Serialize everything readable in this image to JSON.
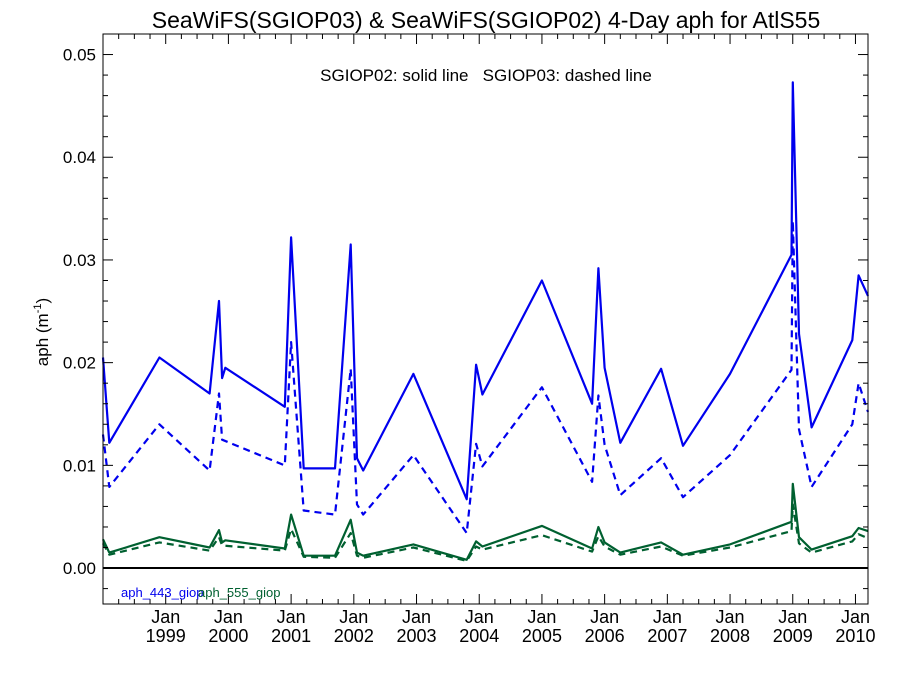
{
  "chart_data": {
    "type": "line",
    "title": "SeaWiFS(SGIOP03) & SeaWiFS(SGIOP02) 4-Day aph for AtlS55",
    "annotation": "SGIOP02: solid line   SGIOP03: dashed line",
    "ylabel": {
      "base": "aph (m",
      "exp": "-1",
      "close": ")"
    },
    "xlabel": "",
    "xlim": [
      1998.0,
      2010.2
    ],
    "ylim": [
      -0.0035,
      0.052
    ],
    "y_ticks": [
      0.0,
      0.01,
      0.02,
      0.03,
      0.04,
      0.05
    ],
    "y_tick_labels": [
      "0.00",
      "0.01",
      "0.02",
      "0.03",
      "0.04",
      "0.05"
    ],
    "x_ticks": [
      {
        "x": 1999.0,
        "month": "Jan",
        "year": "1999"
      },
      {
        "x": 2000.0,
        "month": "Jan",
        "year": "2000"
      },
      {
        "x": 2001.0,
        "month": "Jan",
        "year": "2001"
      },
      {
        "x": 2002.0,
        "month": "Jan",
        "year": "2002"
      },
      {
        "x": 2003.0,
        "month": "Jan",
        "year": "2003"
      },
      {
        "x": 2004.0,
        "month": "Jan",
        "year": "2004"
      },
      {
        "x": 2005.0,
        "month": "Jan",
        "year": "2005"
      },
      {
        "x": 2006.0,
        "month": "Jan",
        "year": "2006"
      },
      {
        "x": 2007.0,
        "month": "Jan",
        "year": "2007"
      },
      {
        "x": 2008.0,
        "month": "Jan",
        "year": "2008"
      },
      {
        "x": 2009.0,
        "month": "Jan",
        "year": "2009"
      },
      {
        "x": 2010.0,
        "month": "Jan",
        "year": "2010"
      }
    ],
    "zero_line": true,
    "grid": false,
    "legend": [
      {
        "label": "aph_443_giop",
        "color": "#0000ee"
      },
      {
        "label": "aph_555_giop",
        "color": "#006030"
      }
    ],
    "legend_position": "bottom-left",
    "series": [
      {
        "name": "aph_443_giop",
        "style": "solid",
        "color": "#0000ee",
        "x": [
          1998.0,
          1998.1,
          1998.9,
          1999.7,
          1999.85,
          1999.9,
          1999.95,
          2000.9,
          2001.0,
          2001.2,
          2001.7,
          2001.95,
          2002.05,
          2002.15,
          2002.95,
          2003.8,
          2003.95,
          2004.05,
          2005.0,
          2005.8,
          2005.9,
          2006.0,
          2006.25,
          2006.9,
          2007.25,
          2008.0,
          2008.98,
          2009.0,
          2009.1,
          2009.3,
          2009.95,
          2010.05,
          2010.2
        ],
        "y": [
          0.0205,
          0.0122,
          0.0205,
          0.017,
          0.026,
          0.0185,
          0.0195,
          0.0157,
          0.0322,
          0.0097,
          0.0097,
          0.0315,
          0.0107,
          0.0095,
          0.0189,
          0.0067,
          0.0198,
          0.0169,
          0.028,
          0.016,
          0.0292,
          0.0195,
          0.0122,
          0.0194,
          0.0119,
          0.0189,
          0.0305,
          0.0473,
          0.0228,
          0.0137,
          0.0222,
          0.0285,
          0.0265
        ]
      },
      {
        "name": "aph_443_giop",
        "style": "dashed",
        "color": "#0000ee",
        "x": [
          1998.0,
          1998.1,
          1998.9,
          1999.7,
          1999.85,
          1999.9,
          2000.9,
          2001.0,
          2001.2,
          2001.7,
          2001.95,
          2002.05,
          2002.15,
          2002.95,
          2003.8,
          2003.95,
          2004.05,
          2005.0,
          2005.8,
          2005.9,
          2006.0,
          2006.25,
          2006.9,
          2007.25,
          2008.0,
          2008.98,
          2009.0,
          2009.1,
          2009.3,
          2009.95,
          2010.05,
          2010.2
        ],
        "y": [
          0.013,
          0.0079,
          0.014,
          0.0095,
          0.017,
          0.0125,
          0.01,
          0.022,
          0.0056,
          0.0052,
          0.0194,
          0.0062,
          0.0052,
          0.011,
          0.0034,
          0.0121,
          0.0099,
          0.0176,
          0.0084,
          0.0168,
          0.012,
          0.0071,
          0.0107,
          0.0069,
          0.011,
          0.0193,
          0.0338,
          0.0135,
          0.0079,
          0.014,
          0.018,
          0.0152
        ]
      },
      {
        "name": "aph_555_giop",
        "style": "solid",
        "color": "#006030",
        "x": [
          1998.0,
          1998.1,
          1998.9,
          1999.7,
          1999.85,
          1999.9,
          1999.95,
          2000.9,
          2001.0,
          2001.2,
          2001.7,
          2001.95,
          2002.05,
          2002.15,
          2002.95,
          2003.8,
          2003.95,
          2004.05,
          2005.0,
          2005.8,
          2005.9,
          2006.0,
          2006.25,
          2006.9,
          2007.25,
          2008.0,
          2008.98,
          2009.0,
          2009.1,
          2009.3,
          2009.95,
          2010.05,
          2010.2
        ],
        "y": [
          0.0028,
          0.0015,
          0.003,
          0.002,
          0.0037,
          0.0025,
          0.0027,
          0.0019,
          0.0052,
          0.0012,
          0.0012,
          0.0047,
          0.0015,
          0.0012,
          0.0023,
          0.0008,
          0.0026,
          0.0021,
          0.0041,
          0.0019,
          0.004,
          0.0025,
          0.0015,
          0.0025,
          0.0013,
          0.0023,
          0.0045,
          0.0082,
          0.003,
          0.0018,
          0.0031,
          0.0039,
          0.0036
        ]
      },
      {
        "name": "aph_555_giop",
        "style": "dashed",
        "color": "#006030",
        "x": [
          1998.0,
          1998.1,
          1998.9,
          1999.7,
          1999.85,
          1999.9,
          2000.9,
          2001.0,
          2001.2,
          2001.7,
          2001.95,
          2002.05,
          2002.15,
          2002.95,
          2003.8,
          2003.95,
          2004.05,
          2005.0,
          2005.8,
          2005.9,
          2006.0,
          2006.25,
          2006.9,
          2007.25,
          2008.0,
          2008.98,
          2009.0,
          2009.1,
          2009.3,
          2009.95,
          2010.05,
          2010.2
        ],
        "y": [
          0.0024,
          0.0013,
          0.0025,
          0.0017,
          0.003,
          0.0022,
          0.0017,
          0.0038,
          0.0011,
          0.001,
          0.0034,
          0.0012,
          0.001,
          0.002,
          0.0007,
          0.0021,
          0.0018,
          0.0032,
          0.0016,
          0.0031,
          0.0021,
          0.0013,
          0.0021,
          0.0012,
          0.002,
          0.0036,
          0.0062,
          0.0024,
          0.0015,
          0.0026,
          0.0033,
          0.0029
        ]
      }
    ]
  }
}
